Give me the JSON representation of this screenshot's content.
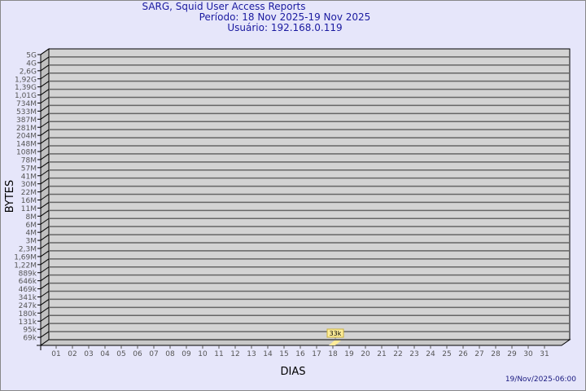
{
  "header": {
    "title": "SARG, Squid User Access Reports",
    "period": "Período: 18 Nov 2025-19 Nov 2025",
    "user": "Usuário: 192.168.0.119"
  },
  "footer": {
    "timestamp": "19/Nov/2025-06:00"
  },
  "chart_data": {
    "type": "bar",
    "xlabel": "DIAS",
    "ylabel": "BYTES",
    "y_scale": "log",
    "grid": true,
    "categories": [
      "01",
      "02",
      "03",
      "04",
      "05",
      "06",
      "07",
      "08",
      "09",
      "10",
      "11",
      "12",
      "13",
      "14",
      "15",
      "16",
      "17",
      "18",
      "19",
      "20",
      "21",
      "22",
      "23",
      "24",
      "25",
      "26",
      "27",
      "28",
      "29",
      "30",
      "31"
    ],
    "y_tick_labels": [
      "5G",
      "4G",
      "2,6G",
      "1,92G",
      "1,39G",
      "1,01G",
      "734M",
      "533M",
      "387M",
      "281M",
      "204M",
      "148M",
      "108M",
      "78M",
      "57M",
      "41M",
      "30M",
      "22M",
      "16M",
      "11M",
      "8M",
      "6M",
      "4M",
      "3M",
      "2,3M",
      "1,69M",
      "1,22M",
      "889k",
      "646k",
      "469k",
      "341k",
      "247k",
      "180k",
      "131k",
      "95k",
      "69k"
    ],
    "series": [
      {
        "points": [
          {
            "x": "18",
            "value": 33000,
            "label": "33k"
          }
        ]
      }
    ],
    "colors": {
      "wall": "#d3d3d3",
      "bar": "#ffeb99",
      "label_bg": "#ffee99",
      "text": "#1a1aa0"
    }
  }
}
